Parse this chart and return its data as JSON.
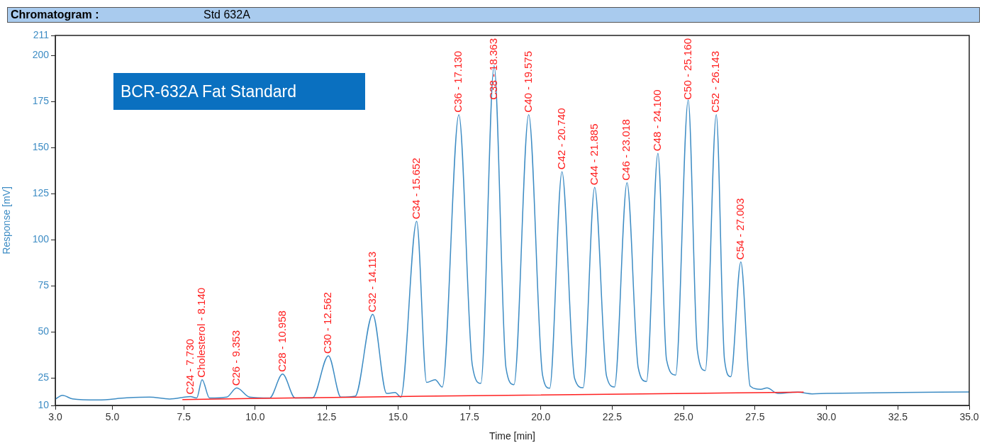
{
  "chart_data": {
    "type": "line",
    "title": "Chromatogram :",
    "subtitle": "Std 632A",
    "xlabel": "Time [min]",
    "ylabel": "Response [mV]",
    "xlim": [
      3,
      35
    ],
    "ylim": [
      10,
      211
    ],
    "xticks": [
      {
        "value": 3,
        "label": "3.0"
      },
      {
        "value": 5,
        "label": "5.0"
      },
      {
        "value": 7.5,
        "label": "7.5"
      },
      {
        "value": 10,
        "label": "10.0"
      },
      {
        "value": 12.5,
        "label": "12.5"
      },
      {
        "value": 15,
        "label": "15.0"
      },
      {
        "value": 17.5,
        "label": "17.5"
      },
      {
        "value": 20,
        "label": "20.0"
      },
      {
        "value": 22.5,
        "label": "22.5"
      },
      {
        "value": 25,
        "label": "25.0"
      },
      {
        "value": 27.5,
        "label": "27.5"
      },
      {
        "value": 30,
        "label": "30.0"
      },
      {
        "value": 32.5,
        "label": "32.5"
      },
      {
        "value": 35,
        "label": "35.0"
      }
    ],
    "yticks": [
      10,
      25,
      50,
      75,
      100,
      125,
      150,
      175,
      200,
      211
    ],
    "grid": false,
    "legend": false,
    "marker": "none",
    "line_style": "solid",
    "series": [
      {
        "color": "#3d8cc4",
        "x": [
          3.0,
          3.25,
          3.6,
          4.5,
          5.5,
          6.3,
          7.0,
          7.73,
          7.95,
          8.14,
          8.4,
          9.0,
          9.353,
          9.8,
          10.5,
          10.958,
          11.4,
          12.0,
          12.562,
          13.0,
          13.5,
          14.113,
          14.6,
          14.9,
          15.1,
          15.652,
          16.0,
          16.3,
          16.55,
          17.13,
          17.6,
          17.9,
          18.363,
          18.78,
          19.06,
          19.575,
          20.06,
          20.31,
          20.74,
          21.18,
          21.48,
          21.885,
          22.3,
          22.58,
          23.018,
          23.41,
          23.7,
          24.1,
          24.4,
          24.72,
          25.16,
          25.48,
          25.76,
          26.143,
          26.43,
          26.65,
          27.003,
          27.33,
          27.7,
          27.92,
          28.3,
          28.7,
          29.0,
          29.5,
          30.0,
          32.5,
          35.0
        ],
        "values": [
          13.4,
          15.5,
          13.6,
          13.0,
          14.1,
          14.5,
          13.5,
          14.8,
          14.0,
          24,
          14.0,
          14.5,
          19.5,
          14.5,
          14.0,
          27,
          14.0,
          14.0,
          37,
          14.5,
          15,
          59.5,
          16.5,
          17,
          14.5,
          110,
          22.5,
          24,
          20,
          168,
          32,
          22,
          194.5,
          30.5,
          21.3,
          168,
          26.5,
          19.3,
          137,
          24.8,
          19.6,
          128.5,
          26,
          20,
          131,
          30.5,
          23,
          147,
          35,
          26.5,
          176,
          40,
          29,
          168,
          35,
          25.6,
          88,
          20.5,
          18.8,
          19.5,
          16.5,
          17,
          17.2,
          16.3,
          16.5,
          17,
          17.3
        ]
      },
      {
        "color": "#ff2020",
        "x": [
          7.45,
          15.8,
          29.2
        ],
        "values": [
          13.2,
          15,
          17.2
        ]
      }
    ],
    "annotations": [
      "BCR-632A Fat Standard",
      {
        "text": "C24 - 7.730",
        "x": 7.73,
        "y": 14.8
      },
      {
        "text": "Cholesterol - 8.140",
        "x": 8.14,
        "y": 24
      },
      {
        "text": "C26 - 9.353",
        "x": 9.353,
        "y": 19.5
      },
      {
        "text": "C28 - 10.958",
        "x": 10.958,
        "y": 27
      },
      {
        "text": "C30 - 12.562",
        "x": 12.562,
        "y": 37
      },
      {
        "text": "C32 - 14.113",
        "x": 14.113,
        "y": 59.5
      },
      {
        "text": "C34 - 15.652",
        "x": 15.652,
        "y": 110
      },
      {
        "text": "C36 - 17.130",
        "x": 17.13,
        "y": 168
      },
      {
        "text": "C38 - 18.363",
        "x": 18.363,
        "y": 194.5
      },
      {
        "text": "C40 - 19.575",
        "x": 19.575,
        "y": 168
      },
      {
        "text": "C42 - 20.740",
        "x": 20.74,
        "y": 137
      },
      {
        "text": "C44 - 21.885",
        "x": 21.885,
        "y": 128.5
      },
      {
        "text": "C46 - 23.018",
        "x": 23.018,
        "y": 131
      },
      {
        "text": "C48 - 24.100",
        "x": 24.1,
        "y": 147
      },
      {
        "text": "C50 - 25.160",
        "x": 25.16,
        "y": 176
      },
      {
        "text": "C52 - 26.143",
        "x": 26.143,
        "y": 168
      },
      {
        "text": "C54 - 27.003",
        "x": 27.003,
        "y": 88
      }
    ]
  }
}
